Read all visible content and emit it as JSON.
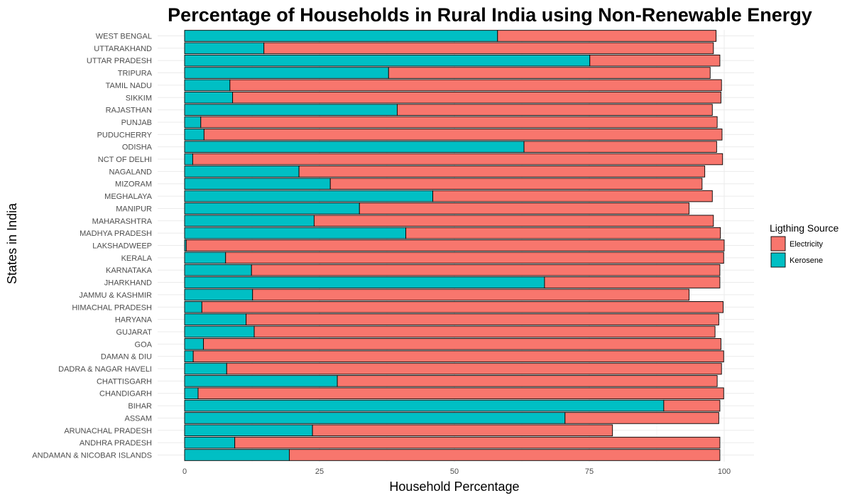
{
  "chart_data": {
    "type": "bar",
    "orientation": "horizontal",
    "stacked": true,
    "title": "Percentage of Households in Rural India using Non-Renewable Energy",
    "xlabel": "Household Percentage",
    "ylabel": "States in India",
    "xlim": [
      0,
      100
    ],
    "xticks": [
      0,
      25,
      50,
      75,
      100
    ],
    "grid": true,
    "legend_title": "Ligthing Source",
    "legend_position": "right",
    "categories": [
      "ANDAMAN & NICOBAR ISLANDS",
      "ANDHRA PRADESH",
      "ARUNACHAL PRADESH",
      "ASSAM",
      "BIHAR",
      "CHANDIGARH",
      "CHATTISGARH",
      "DADRA & NAGAR HAVELI",
      "DAMAN & DIU",
      "GOA",
      "GUJARAT",
      "HARYANA",
      "HIMACHAL PRADESH",
      "JAMMU & KASHMIR",
      "JHARKHAND",
      "KARNATAKA",
      "KERALA",
      "LAKSHADWEEP",
      "MADHYA PRADESH",
      "MAHARASHTRA",
      "MANIPUR",
      "MEGHALAYA",
      "MIZORAM",
      "NAGALAND",
      "NCT OF DELHI",
      "ODISHA",
      "PUDUCHERRY",
      "PUNJAB",
      "RAJASTHAN",
      "SIKKIM",
      "TAMIL NADU",
      "TRIPURA",
      "UTTAR PRADESH",
      "UTTARAKHAND",
      "WEST BENGAL"
    ],
    "series": [
      {
        "name": "Kerosene",
        "color": "#00BFC4",
        "values": [
          19.4,
          9.3,
          23.7,
          70.5,
          88.8,
          2.5,
          28.3,
          7.8,
          1.6,
          3.5,
          12.9,
          11.4,
          3.2,
          12.6,
          66.7,
          12.4,
          7.6,
          0.3,
          41.0,
          24.0,
          32.4,
          46.0,
          27.0,
          21.2,
          1.5,
          62.9,
          3.6,
          3.0,
          39.4,
          8.9,
          8.4,
          37.8,
          75.1,
          14.7,
          58.0
        ]
      },
      {
        "name": "Electricity",
        "color": "#F8766D",
        "values": [
          79.8,
          89.9,
          55.6,
          28.5,
          10.4,
          97.4,
          70.4,
          91.7,
          98.3,
          95.9,
          85.4,
          87.6,
          96.6,
          80.9,
          32.5,
          86.8,
          92.3,
          99.7,
          58.3,
          74.0,
          61.1,
          51.8,
          68.9,
          75.2,
          98.2,
          35.7,
          96.0,
          95.7,
          58.4,
          90.5,
          91.1,
          59.6,
          24.1,
          83.3,
          40.5
        ]
      }
    ]
  }
}
